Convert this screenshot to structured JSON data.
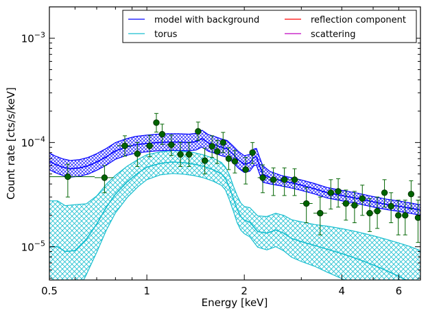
{
  "chart_data": {
    "type": "line",
    "title": "",
    "xlabel": "Energy [keV]",
    "ylabel": "Count rate [cts/s/keV]",
    "x_scale": "log",
    "y_scale": "log",
    "xlim": [
      0.5,
      7.0
    ],
    "ylim": [
      4.8e-06,
      0.002
    ],
    "x_ticks": [
      {
        "value": 0.5,
        "label": "0.5"
      },
      {
        "value": 1,
        "label": "1"
      },
      {
        "value": 2,
        "label": "2"
      },
      {
        "value": 4,
        "label": "4"
      },
      {
        "value": 6,
        "label": "6"
      }
    ],
    "y_ticks": [
      {
        "value": 1e-05,
        "base": "10",
        "exp": "−5"
      },
      {
        "value": 0.0001,
        "base": "10",
        "exp": "−4"
      },
      {
        "value": 0.001,
        "base": "10",
        "exp": "−3"
      }
    ],
    "grid": false,
    "legend_position": "top-right",
    "legend": [
      {
        "name": "model with background",
        "color": "#0000ff"
      },
      {
        "name": "reflection component",
        "color": "#ff0000"
      },
      {
        "name": "torus",
        "color": "#17becf"
      },
      {
        "name": "scattering",
        "color": "#bf00bf"
      }
    ],
    "series": [
      {
        "name": "model with background",
        "color": "#0000ff",
        "x": [
          0.5,
          0.52,
          0.55,
          0.58,
          0.62,
          0.66,
          0.7,
          0.75,
          0.8,
          0.86,
          0.92,
          1.0,
          1.08,
          1.16,
          1.25,
          1.35,
          1.42,
          1.48,
          1.55,
          1.62,
          1.7,
          1.77,
          1.84,
          1.92,
          2.0,
          2.08,
          2.14,
          2.18,
          2.22,
          2.28,
          2.4,
          2.6,
          2.8,
          3.0,
          3.3,
          3.6,
          4.0,
          4.5,
          5.0,
          5.5,
          6.0,
          6.5,
          7.0
        ],
        "y": [
          6.6e-05,
          6.2e-05,
          5.8e-05,
          5.6e-05,
          5.7e-05,
          6e-05,
          6.5e-05,
          7.3e-05,
          8.3e-05,
          9e-05,
          9.5e-05,
          9.8e-05,
          0.0001,
          0.000101,
          0.000101,
          0.0001,
          0.000102,
          0.000109,
          9.9e-05,
          9.5e-05,
          9e-05,
          8.7e-05,
          7.8e-05,
          6.8e-05,
          6.2e-05,
          6.4e-05,
          7.2e-05,
          7.3e-05,
          6.2e-05,
          5e-05,
          4.6e-05,
          4.3e-05,
          4.1e-05,
          3.9e-05,
          3.6e-05,
          3.3e-05,
          3.1e-05,
          2.9e-05,
          2.7e-05,
          2.55e-05,
          2.45e-05,
          2.35e-05,
          2.25e-05
        ],
        "band": [
          0.08,
          0.08,
          0.08,
          0.08,
          0.08,
          0.08,
          0.08,
          0.08,
          0.08,
          0.08,
          0.08,
          0.08,
          0.08,
          0.08,
          0.08,
          0.08,
          0.08,
          0.08,
          0.08,
          0.08,
          0.08,
          0.08,
          0.08,
          0.08,
          0.08,
          0.08,
          0.08,
          0.08,
          0.08,
          0.08,
          0.06,
          0.05,
          0.05,
          0.05,
          0.05,
          0.05,
          0.05,
          0.05,
          0.05,
          0.05,
          0.05,
          0.05,
          0.05
        ]
      },
      {
        "name": "torus",
        "color": "#17becf",
        "x": [
          0.5,
          0.53,
          0.56,
          0.6,
          0.65,
          0.7,
          0.75,
          0.8,
          0.87,
          0.94,
          1.0,
          1.1,
          1.2,
          1.3,
          1.4,
          1.5,
          1.6,
          1.7,
          1.75,
          1.8,
          1.85,
          1.9,
          1.95,
          2.0,
          2.08,
          2.2,
          2.35,
          2.5,
          2.65,
          2.8,
          3.0,
          3.3,
          3.6,
          4.0,
          4.5,
          5.0,
          5.5,
          6.0,
          6.5,
          7.0
        ],
        "y": [
          1e-05,
          1e-05,
          9e-06,
          9.2e-06,
          1.18e-05,
          1.65e-05,
          2.4e-05,
          3.2e-05,
          4.2e-05,
          5.1e-05,
          5.8e-05,
          6.3e-05,
          6.5e-05,
          6.4e-05,
          6.2e-05,
          5.9e-05,
          5.5e-05,
          5e-05,
          4.5e-05,
          3.7e-05,
          2.9e-05,
          2.3e-05,
          1.95e-05,
          1.8e-05,
          1.72e-05,
          1.4e-05,
          1.35e-05,
          1.45e-05,
          1.35e-05,
          1.2e-05,
          1.12e-05,
          1.03e-05,
          9.5e-06,
          8.6e-06,
          7.6e-06,
          6.7e-06,
          5.9e-06,
          5.2e-06,
          4.6e-06,
          4e-06
        ],
        "band": [
          0.44,
          0.44,
          0.44,
          0.44,
          0.34,
          0.27,
          0.22,
          0.18,
          0.15,
          0.13,
          0.12,
          0.11,
          0.11,
          0.11,
          0.11,
          0.11,
          0.11,
          0.11,
          0.11,
          0.12,
          0.12,
          0.13,
          0.13,
          0.13,
          0.14,
          0.15,
          0.16,
          0.16,
          0.17,
          0.18,
          0.19,
          0.2,
          0.22,
          0.24,
          0.26,
          0.28,
          0.3,
          0.32,
          0.34,
          0.36
        ]
      }
    ],
    "data_points": {
      "name": "data",
      "color": "#006400",
      "edge": "#003300",
      "points": [
        {
          "x": 0.57,
          "y": 4.7e-05,
          "xerr": [
            0.5,
            0.69
          ],
          "yerr": [
            3e-05,
            6.2e-05
          ]
        },
        {
          "x": 0.74,
          "y": 4.6e-05,
          "xerr": [
            0.69,
            0.79
          ],
          "yerr": [
            3.3e-05,
            6e-05
          ]
        },
        {
          "x": 0.855,
          "y": 9.3e-05,
          "xerr": [
            0.81,
            0.9
          ],
          "yerr": [
            7.4e-05,
            0.000116
          ]
        },
        {
          "x": 0.935,
          "y": 7.8e-05,
          "xerr": [
            0.91,
            0.96
          ],
          "yerr": [
            5.9e-05,
            0.0001
          ]
        },
        {
          "x": 1.02,
          "y": 9.3e-05,
          "xerr": [
            0.99,
            1.05
          ],
          "yerr": [
            7.3e-05,
            0.000117
          ]
        },
        {
          "x": 1.07,
          "y": 0.000155,
          "xerr": [
            1.05,
            1.09
          ],
          "yerr": [
            0.000126,
            0.00019
          ]
        },
        {
          "x": 1.115,
          "y": 0.00012,
          "xerr": [
            1.09,
            1.14
          ],
          "yerr": [
            9.6e-05,
            0.00015
          ]
        },
        {
          "x": 1.19,
          "y": 9.5e-05,
          "xerr": [
            1.15,
            1.23
          ],
          "yerr": [
            7.5e-05,
            0.000118
          ]
        },
        {
          "x": 1.27,
          "y": 7.7e-05,
          "xerr": [
            1.24,
            1.3
          ],
          "yerr": [
            5.9e-05,
            0.0001
          ]
        },
        {
          "x": 1.35,
          "y": 7.7e-05,
          "xerr": [
            1.31,
            1.39
          ],
          "yerr": [
            5.9e-05,
            0.0001
          ]
        },
        {
          "x": 1.44,
          "y": 0.000128,
          "xerr": [
            1.41,
            1.47
          ],
          "yerr": [
            0.000105,
            0.000157
          ]
        },
        {
          "x": 1.51,
          "y": 6.7e-05,
          "xerr": [
            1.48,
            1.55
          ],
          "yerr": [
            5e-05,
            8.8e-05
          ]
        },
        {
          "x": 1.59,
          "y": 9.2e-05,
          "xerr": [
            1.56,
            1.62
          ],
          "yerr": [
            7.2e-05,
            0.000116
          ]
        },
        {
          "x": 1.65,
          "y": 8.2e-05,
          "xerr": [
            1.63,
            1.68
          ],
          "yerr": [
            6.3e-05,
            0.000105
          ]
        },
        {
          "x": 1.72,
          "y": 0.0001,
          "xerr": [
            1.7,
            1.74
          ],
          "yerr": [
            8e-05,
            0.000125
          ]
        },
        {
          "x": 1.79,
          "y": 7e-05,
          "xerr": [
            1.76,
            1.82
          ],
          "yerr": [
            5.5e-05,
            8.9e-05
          ]
        },
        {
          "x": 1.87,
          "y": 6.6e-05,
          "xerr": [
            1.83,
            1.91
          ],
          "yerr": [
            5.1e-05,
            8.4e-05
          ]
        },
        {
          "x": 2.02,
          "y": 5.5e-05,
          "xerr": [
            1.97,
            2.07
          ],
          "yerr": [
            4e-05,
            7.2e-05
          ]
        },
        {
          "x": 2.12,
          "y": 8e-05,
          "xerr": [
            2.08,
            2.16
          ],
          "yerr": [
            6.3e-05,
            0.0001
          ]
        },
        {
          "x": 2.28,
          "y": 4.6e-05,
          "xerr": [
            2.2,
            2.36
          ],
          "yerr": [
            3.3e-05,
            6.1e-05
          ]
        },
        {
          "x": 2.46,
          "y": 4.4e-05,
          "xerr": [
            2.38,
            2.55
          ],
          "yerr": [
            3.1e-05,
            5.7e-05
          ]
        },
        {
          "x": 2.66,
          "y": 4.4e-05,
          "xerr": [
            2.57,
            2.76
          ],
          "yerr": [
            3.1e-05,
            5.7e-05
          ]
        },
        {
          "x": 2.86,
          "y": 4.4e-05,
          "xerr": [
            2.77,
            2.96
          ],
          "yerr": [
            3.1e-05,
            5.6e-05
          ]
        },
        {
          "x": 3.11,
          "y": 2.6e-05,
          "xerr": [
            2.97,
            3.25
          ],
          "yerr": [
            1.7e-05,
            3.7e-05
          ]
        },
        {
          "x": 3.43,
          "y": 2.1e-05,
          "xerr": [
            3.27,
            3.6
          ],
          "yerr": [
            1.3e-05,
            3e-05
          ]
        },
        {
          "x": 3.7,
          "y": 3.3e-05,
          "xerr": [
            3.6,
            3.8
          ],
          "yerr": [
            2.3e-05,
            4.4e-05
          ]
        },
        {
          "x": 3.9,
          "y": 3.4e-05,
          "xerr": [
            3.8,
            4.0
          ],
          "yerr": [
            2.4e-05,
            4.5e-05
          ]
        },
        {
          "x": 4.12,
          "y": 2.6e-05,
          "xerr": [
            4.0,
            4.25
          ],
          "yerr": [
            1.8e-05,
            3.5e-05
          ]
        },
        {
          "x": 4.38,
          "y": 2.5e-05,
          "xerr": [
            4.25,
            4.52
          ],
          "yerr": [
            1.7e-05,
            3.4e-05
          ]
        },
        {
          "x": 4.63,
          "y": 2.9e-05,
          "xerr": [
            4.52,
            4.75
          ],
          "yerr": [
            2e-05,
            3.9e-05
          ]
        },
        {
          "x": 4.88,
          "y": 2.1e-05,
          "xerr": [
            4.75,
            5.01
          ],
          "yerr": [
            1.4e-05,
            2.9e-05
          ]
        },
        {
          "x": 5.15,
          "y": 2.2e-05,
          "xerr": [
            5.01,
            5.3
          ],
          "yerr": [
            1.5e-05,
            3e-05
          ]
        },
        {
          "x": 5.42,
          "y": 3.3e-05,
          "xerr": [
            5.3,
            5.55
          ],
          "yerr": [
            2.4e-05,
            4.4e-05
          ]
        },
        {
          "x": 5.68,
          "y": 2.45e-05,
          "xerr": [
            5.55,
            5.82
          ],
          "yerr": [
            1.7e-05,
            3.3e-05
          ]
        },
        {
          "x": 5.98,
          "y": 2e-05,
          "xerr": [
            5.84,
            6.12
          ],
          "yerr": [
            1.3e-05,
            2.8e-05
          ]
        },
        {
          "x": 6.28,
          "y": 2e-05,
          "xerr": [
            6.15,
            6.4
          ],
          "yerr": [
            1.3e-05,
            2.8e-05
          ]
        },
        {
          "x": 6.55,
          "y": 3.2e-05,
          "xerr": [
            6.42,
            6.68
          ],
          "yerr": [
            2.3e-05,
            4.3e-05
          ]
        },
        {
          "x": 6.88,
          "y": 1.9e-05,
          "xerr": [
            6.75,
            7.0
          ],
          "yerr": [
            1.1e-05,
            2.8e-05
          ]
        }
      ]
    }
  }
}
